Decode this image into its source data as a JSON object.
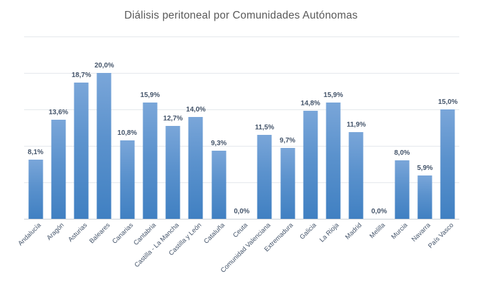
{
  "chart_data": {
    "type": "bar",
    "title": "Diálisis peritoneal por Comunidades Autónomas",
    "categories": [
      "Andalucía",
      "Aragón",
      "Asturias",
      "Baleares",
      "Canarias",
      "Cantabria",
      "Castilla - La Mancha",
      "Castilla y León",
      "Cataluña",
      "Ceuta",
      "Comunidad Valenciana",
      "Extremadura",
      "Galicia",
      "La Rioja",
      "Madrid",
      "Melilla",
      "Murcia",
      "Navarra",
      "País Vasco"
    ],
    "values": [
      8.1,
      13.6,
      18.7,
      20.0,
      10.8,
      15.9,
      12.7,
      14.0,
      9.3,
      0.0,
      11.5,
      9.7,
      14.8,
      15.9,
      11.9,
      0.0,
      8.0,
      5.9,
      15.0
    ],
    "labels": [
      "8,1%",
      "13,6%",
      "18,7%",
      "20,0%",
      "10,8%",
      "15,9%",
      "12,7%",
      "14,0%",
      "9,3%",
      "0,0%",
      "11,5%",
      "9,7%",
      "14,8%",
      "15,9%",
      "11,9%",
      "0,0%",
      "8,0%",
      "5,9%",
      "15,0%"
    ],
    "xlabel": "",
    "ylabel": "",
    "ylim": [
      0,
      25
    ],
    "gridline_step": 5,
    "grid": "horizontal",
    "legend": "none",
    "colors": {
      "bar_top": "#7aa6d9",
      "bar_bottom": "#4080c2",
      "data_label": "#44546a",
      "axis_label": "#44546a",
      "title": "#595959",
      "gridline": "#e4e8ec",
      "axis_line": "#c9cfd6"
    }
  }
}
